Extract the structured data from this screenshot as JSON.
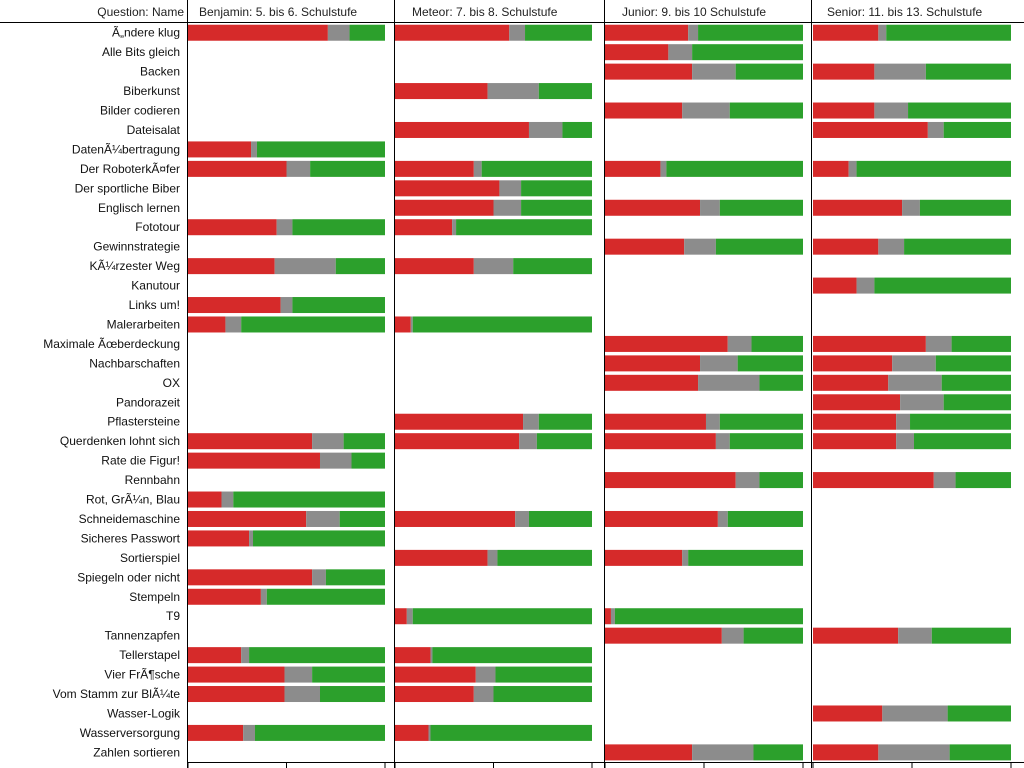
{
  "header": {
    "row_label": "Question: Name",
    "panels": [
      "Benjamin: 5. bis 6. Schulstufe",
      "Meteor: 7. bis 8. Schulstufe",
      "Junior: 9. bis 10 Schulstufe",
      "Senior: 11. bis 13. Schulstufe"
    ]
  },
  "colors": {
    "wrong": "#d62a2a",
    "no_answer": "#8c8c8c",
    "correct": "#2ca02c",
    "grid": "#000000"
  },
  "chart_data": {
    "type": "bar",
    "stacked": true,
    "orientation": "horizontal",
    "normalized_to": 1.0,
    "series_order": [
      "wrong",
      "no_answer",
      "correct"
    ],
    "panels": [
      "Benjamin: 5. bis 6. Schulstufe",
      "Meteor: 7. bis 8. Schulstufe",
      "Junior: 9. bis 10 Schulstufe",
      "Senior: 11. bis 13. Schulstufe"
    ],
    "categories": [
      "Ã„ndere klug",
      "Alle Bits gleich",
      "Backen",
      "Biberkunst",
      "Bilder codieren",
      "Dateisalat",
      "DatenÃ¼bertragung",
      "Der RoboterkÃ¤fer",
      "Der sportliche Biber",
      "Englisch lernen",
      "Fototour",
      "Gewinnstrategie",
      "KÃ¼rzester Weg",
      "Kanutour",
      "Links um!",
      "Malerarbeiten",
      "Maximale Ãœberdeckung",
      "Nachbarschaften",
      "OX",
      "Pandorazeit",
      "Pflastersteine",
      "Querdenken lohnt sich",
      "Rate die Figur!",
      "Rennbahn",
      "Rot, GrÃ¼n, Blau",
      "Schneidemaschine",
      "Sicheres Passwort",
      "Sortierspiel",
      "Spiegeln oder nicht",
      "Stempeln",
      "T9",
      "Tannenzapfen",
      "Tellerstapel",
      "Vier FrÃ¶sche",
      "Vom Stamm zur BlÃ¼te",
      "Wasser-Logik",
      "Wasserversorgung",
      "Zahlen sortieren"
    ],
    "values": [
      [
        [
          0.71,
          0.11,
          0.18
        ],
        [
          0.58,
          0.08,
          0.34
        ],
        [
          0.42,
          0.05,
          0.53
        ],
        [
          0.33,
          0.04,
          0.63
        ]
      ],
      [
        null,
        null,
        [
          0.32,
          0.12,
          0.56
        ],
        null
      ],
      [
        null,
        null,
        [
          0.44,
          0.22,
          0.34
        ],
        [
          0.31,
          0.26,
          0.43
        ]
      ],
      [
        null,
        [
          0.47,
          0.26,
          0.27
        ],
        null,
        null
      ],
      [
        null,
        null,
        [
          0.39,
          0.24,
          0.37
        ],
        [
          0.31,
          0.17,
          0.52
        ]
      ],
      [
        null,
        [
          0.68,
          0.17,
          0.15
        ],
        null,
        [
          0.58,
          0.08,
          0.34
        ]
      ],
      [
        [
          0.32,
          0.03,
          0.65
        ],
        null,
        null,
        null
      ],
      [
        [
          0.5,
          0.12,
          0.38
        ],
        [
          0.4,
          0.04,
          0.56
        ],
        [
          0.28,
          0.03,
          0.69
        ],
        [
          0.18,
          0.04,
          0.78
        ]
      ],
      [
        null,
        [
          0.53,
          0.11,
          0.36
        ],
        null,
        null
      ],
      [
        null,
        [
          0.5,
          0.14,
          0.36
        ],
        [
          0.48,
          0.1,
          0.42
        ],
        [
          0.45,
          0.09,
          0.46
        ]
      ],
      [
        [
          0.45,
          0.08,
          0.47
        ],
        [
          0.29,
          0.02,
          0.69
        ],
        null,
        null
      ],
      [
        null,
        null,
        [
          0.4,
          0.16,
          0.44
        ],
        [
          0.33,
          0.13,
          0.54
        ]
      ],
      [
        [
          0.44,
          0.31,
          0.25
        ],
        [
          0.4,
          0.2,
          0.4
        ],
        null,
        null
      ],
      [
        null,
        null,
        null,
        [
          0.22,
          0.09,
          0.69
        ]
      ],
      [
        [
          0.47,
          0.06,
          0.47
        ],
        null,
        null,
        null
      ],
      [
        [
          0.19,
          0.08,
          0.73
        ],
        [
          0.08,
          0.01,
          0.91
        ],
        null,
        null
      ],
      [
        null,
        null,
        [
          0.62,
          0.12,
          0.26
        ],
        [
          0.57,
          0.13,
          0.3
        ]
      ],
      [
        null,
        null,
        [
          0.48,
          0.19,
          0.33
        ],
        [
          0.4,
          0.22,
          0.38
        ]
      ],
      [
        null,
        null,
        [
          0.47,
          0.31,
          0.22
        ],
        [
          0.38,
          0.27,
          0.35
        ]
      ],
      [
        null,
        null,
        null,
        [
          0.44,
          0.22,
          0.34
        ]
      ],
      [
        null,
        [
          0.65,
          0.08,
          0.27
        ],
        [
          0.51,
          0.07,
          0.42
        ],
        [
          0.42,
          0.07,
          0.51
        ]
      ],
      [
        [
          0.63,
          0.16,
          0.21
        ],
        [
          0.63,
          0.09,
          0.28
        ],
        [
          0.56,
          0.07,
          0.37
        ],
        [
          0.42,
          0.09,
          0.49
        ]
      ],
      [
        [
          0.67,
          0.16,
          0.17
        ],
        null,
        null,
        null
      ],
      [
        null,
        null,
        [
          0.66,
          0.12,
          0.22
        ],
        [
          0.61,
          0.11,
          0.28
        ]
      ],
      [
        [
          0.17,
          0.06,
          0.77
        ],
        null,
        null,
        null
      ],
      [
        [
          0.6,
          0.17,
          0.23
        ],
        [
          0.61,
          0.07,
          0.32
        ],
        [
          0.57,
          0.05,
          0.38
        ],
        null
      ],
      [
        [
          0.31,
          0.02,
          0.67
        ],
        null,
        null,
        null
      ],
      [
        null,
        [
          0.47,
          0.05,
          0.48
        ],
        [
          0.39,
          0.03,
          0.58
        ],
        null
      ],
      [
        [
          0.63,
          0.07,
          0.3
        ],
        null,
        null,
        null
      ],
      [
        [
          0.37,
          0.03,
          0.6
        ],
        null,
        null,
        null
      ],
      [
        null,
        [
          0.06,
          0.03,
          0.91
        ],
        [
          0.03,
          0.02,
          0.95
        ],
        null
      ],
      [
        null,
        null,
        [
          0.59,
          0.11,
          0.3
        ],
        [
          0.43,
          0.17,
          0.4
        ]
      ],
      [
        [
          0.27,
          0.04,
          0.69
        ],
        [
          0.18,
          0.01,
          0.81
        ],
        null,
        null
      ],
      [
        [
          0.49,
          0.14,
          0.37
        ],
        [
          0.41,
          0.1,
          0.49
        ],
        null,
        null
      ],
      [
        [
          0.49,
          0.18,
          0.33
        ],
        [
          0.4,
          0.1,
          0.5
        ],
        null,
        null
      ],
      [
        null,
        null,
        null,
        [
          0.35,
          0.33,
          0.32
        ]
      ],
      [
        [
          0.28,
          0.06,
          0.66
        ],
        [
          0.17,
          0.01,
          0.82
        ],
        null,
        null
      ],
      [
        null,
        null,
        [
          0.44,
          0.31,
          0.25
        ],
        [
          0.33,
          0.36,
          0.31
        ]
      ]
    ]
  }
}
